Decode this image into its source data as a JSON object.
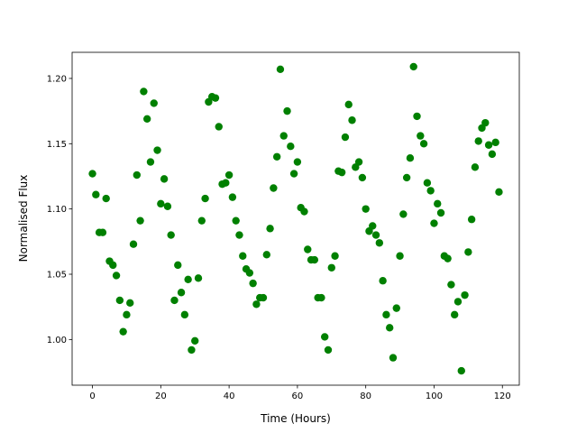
{
  "chart_data": {
    "type": "scatter",
    "x_label": "Time (Hours)",
    "y_label": "Normalised Flux",
    "x": [
      0,
      1,
      2,
      3,
      4,
      5,
      6,
      7,
      8,
      9,
      10,
      11,
      12,
      13,
      14,
      15,
      16,
      17,
      18,
      19,
      20,
      21,
      22,
      23,
      24,
      25,
      26,
      27,
      28,
      29,
      30,
      31,
      32,
      33,
      34,
      35,
      36,
      37,
      38,
      39,
      40,
      41,
      42,
      43,
      44,
      45,
      46,
      47,
      48,
      49,
      50,
      51,
      52,
      53,
      54,
      55,
      56,
      57,
      58,
      59,
      60,
      61,
      62,
      63,
      64,
      65,
      66,
      67,
      68,
      69,
      70,
      71,
      72,
      73,
      74,
      75,
      76,
      77,
      78,
      79,
      80,
      81,
      82,
      83,
      84,
      85,
      86,
      87,
      88,
      89,
      90,
      91,
      92,
      93,
      94,
      95,
      96,
      97,
      98,
      99,
      100,
      101,
      102,
      103,
      104,
      105,
      106,
      107,
      108,
      109,
      110,
      111,
      112,
      113,
      114,
      115,
      116,
      117,
      118,
      119
    ],
    "values": [
      1.127,
      1.111,
      1.082,
      1.082,
      1.108,
      1.06,
      1.057,
      1.049,
      1.03,
      1.006,
      1.019,
      1.028,
      1.073,
      1.126,
      1.091,
      1.19,
      1.169,
      1.136,
      1.181,
      1.145,
      1.104,
      1.123,
      1.102,
      1.08,
      1.03,
      1.057,
      1.036,
      1.019,
      1.046,
      0.992,
      0.999,
      1.047,
      1.091,
      1.108,
      1.182,
      1.186,
      1.185,
      1.163,
      1.119,
      1.12,
      1.126,
      1.109,
      1.091,
      1.08,
      1.064,
      1.054,
      1.051,
      1.043,
      1.027,
      1.032,
      1.032,
      1.065,
      1.085,
      1.116,
      1.14,
      1.207,
      1.156,
      1.175,
      1.148,
      1.127,
      1.136,
      1.101,
      1.098,
      1.069,
      1.061,
      1.061,
      1.032,
      1.032,
      1.002,
      0.992,
      1.055,
      1.064,
      1.129,
      1.128,
      1.155,
      1.18,
      1.168,
      1.132,
      1.136,
      1.124,
      1.1,
      1.083,
      1.087,
      1.08,
      1.074,
      1.045,
      1.019,
      1.009,
      0.986,
      1.024,
      1.064,
      1.096,
      1.124,
      1.139,
      1.209,
      1.171,
      1.156,
      1.15,
      1.12,
      1.114,
      1.089,
      1.104,
      1.097,
      1.064,
      1.062,
      1.042,
      1.019,
      1.029,
      0.976,
      1.034,
      1.067,
      1.092,
      1.132,
      1.152,
      1.162,
      1.166,
      1.149,
      1.142,
      1.151,
      1.113
    ],
    "color": "#008000",
    "xlim": [
      -5.95,
      124.95
    ],
    "xticks": [
      0,
      20,
      40,
      60,
      80,
      100,
      120
    ],
    "ylim": [
      0.965,
      1.22
    ],
    "yticks": [
      {
        "value": 1.0,
        "label": "1.00"
      },
      {
        "value": 1.05,
        "label": "1.05"
      },
      {
        "value": 1.1,
        "label": "1.10"
      },
      {
        "value": 1.15,
        "label": "1.15"
      },
      {
        "value": 1.2,
        "label": "1.20"
      }
    ],
    "grid": false
  }
}
